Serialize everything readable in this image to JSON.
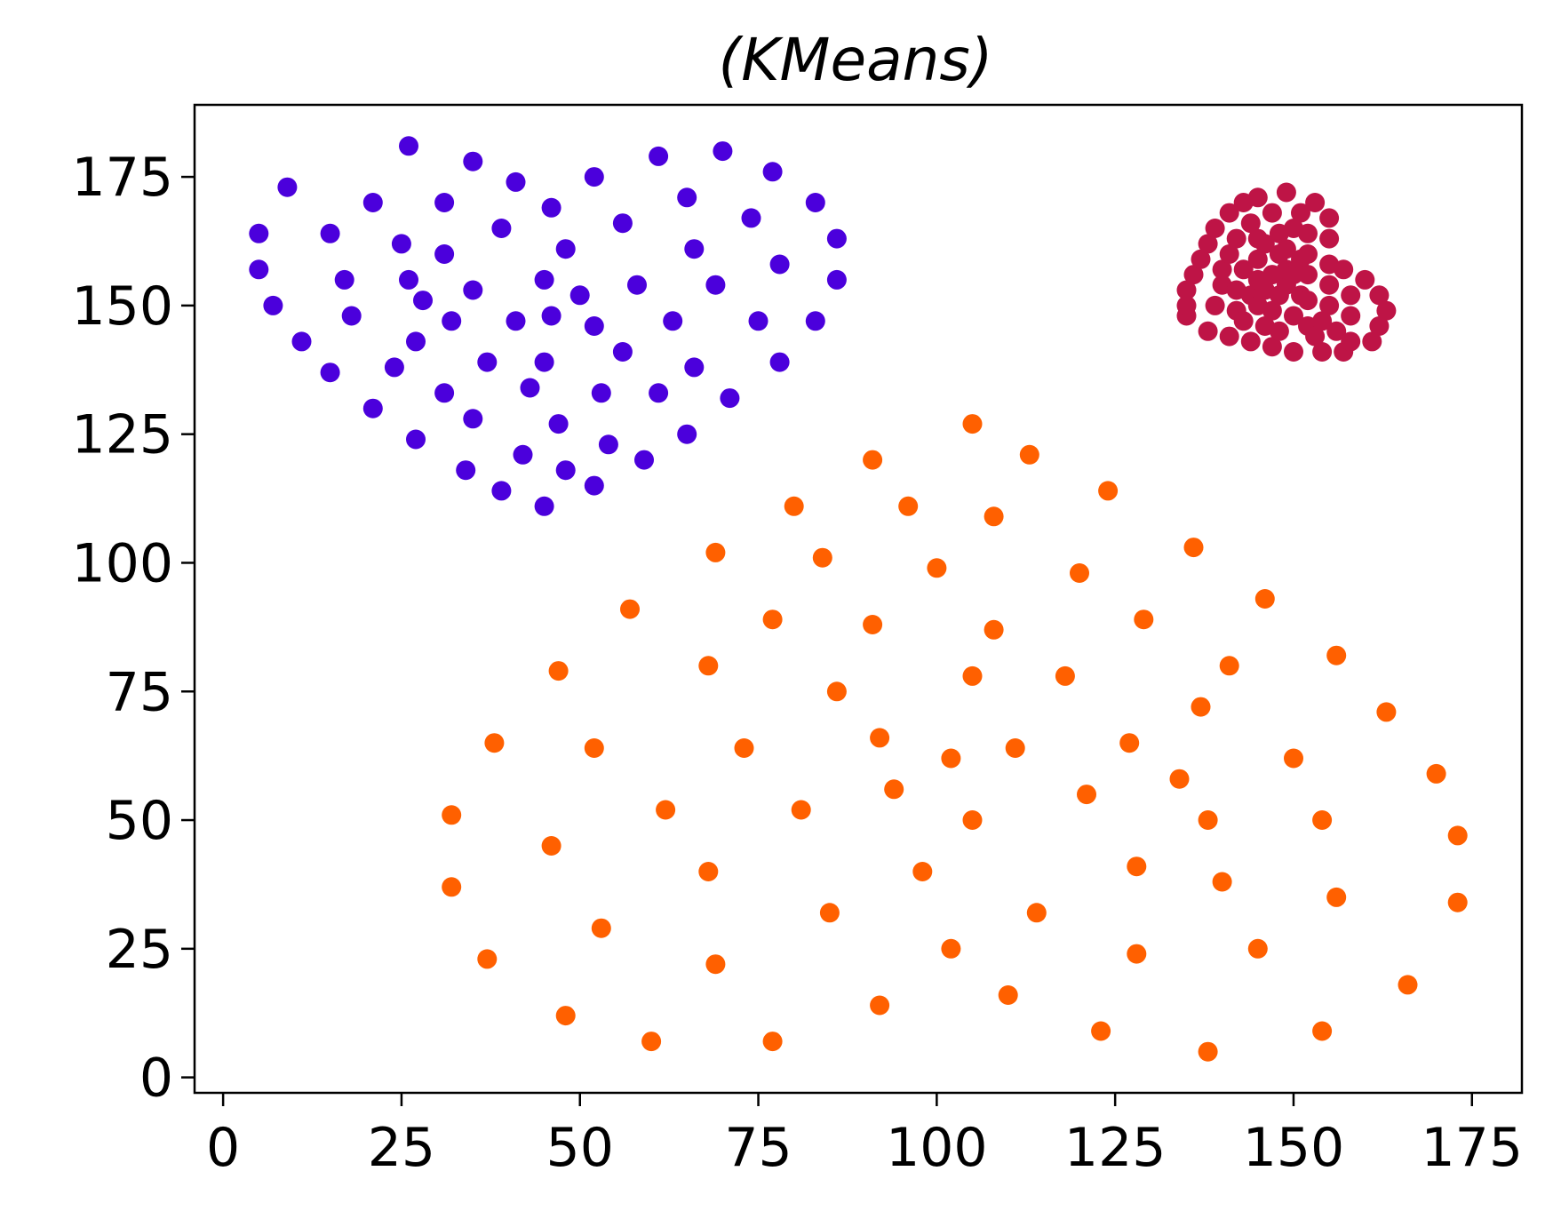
{
  "chart_data": {
    "type": "scatter",
    "title": "(KMeans)",
    "xlabel": "",
    "ylabel": "",
    "xlim": [
      -4,
      182
    ],
    "ylim": [
      -3,
      189
    ],
    "xticks": [
      0,
      25,
      50,
      75,
      100,
      125,
      150,
      175
    ],
    "yticks": [
      0,
      25,
      50,
      75,
      100,
      125,
      150,
      175
    ],
    "grid": false,
    "legend": "none",
    "series": [
      {
        "color": "#4b00dc",
        "points": [
          [
            5,
            164
          ],
          [
            5,
            157
          ],
          [
            7,
            150
          ],
          [
            9,
            173
          ],
          [
            11,
            143
          ],
          [
            15,
            164
          ],
          [
            15,
            137
          ],
          [
            17,
            155
          ],
          [
            18,
            148
          ],
          [
            21,
            170
          ],
          [
            21,
            130
          ],
          [
            24,
            138
          ],
          [
            25,
            162
          ],
          [
            26,
            181
          ],
          [
            26,
            155
          ],
          [
            27,
            143
          ],
          [
            27,
            124
          ],
          [
            28,
            151
          ],
          [
            31,
            133
          ],
          [
            31,
            170
          ],
          [
            31,
            160
          ],
          [
            32,
            147
          ],
          [
            34,
            118
          ],
          [
            35,
            178
          ],
          [
            35,
            153
          ],
          [
            35,
            128
          ],
          [
            37,
            139
          ],
          [
            39,
            165
          ],
          [
            39,
            114
          ],
          [
            41,
            147
          ],
          [
            41,
            174
          ],
          [
            42,
            121
          ],
          [
            43,
            134
          ],
          [
            45,
            155
          ],
          [
            45,
            139
          ],
          [
            45,
            111
          ],
          [
            46,
            169
          ],
          [
            46,
            148
          ],
          [
            47,
            127
          ],
          [
            48,
            161
          ],
          [
            48,
            118
          ],
          [
            50,
            152
          ],
          [
            52,
            175
          ],
          [
            52,
            146
          ],
          [
            52,
            115
          ],
          [
            53,
            133
          ],
          [
            54,
            123
          ],
          [
            56,
            166
          ],
          [
            56,
            141
          ],
          [
            58,
            154
          ],
          [
            59,
            120
          ],
          [
            61,
            179
          ],
          [
            61,
            133
          ],
          [
            63,
            147
          ],
          [
            65,
            125
          ],
          [
            65,
            171
          ],
          [
            66,
            161
          ],
          [
            66,
            138
          ],
          [
            69,
            154
          ],
          [
            70,
            180
          ],
          [
            71,
            132
          ],
          [
            74,
            167
          ],
          [
            75,
            147
          ],
          [
            77,
            176
          ],
          [
            78,
            158
          ],
          [
            78,
            139
          ],
          [
            83,
            170
          ],
          [
            83,
            147
          ],
          [
            86,
            163
          ],
          [
            86,
            155
          ]
        ]
      },
      {
        "color": "#ff6000",
        "points": [
          [
            32,
            51
          ],
          [
            32,
            37
          ],
          [
            37,
            23
          ],
          [
            38,
            65
          ],
          [
            46,
            45
          ],
          [
            47,
            79
          ],
          [
            48,
            12
          ],
          [
            52,
            64
          ],
          [
            53,
            29
          ],
          [
            57,
            91
          ],
          [
            60,
            7
          ],
          [
            62,
            52
          ],
          [
            68,
            80
          ],
          [
            68,
            40
          ],
          [
            69,
            22
          ],
          [
            69,
            102
          ],
          [
            73,
            64
          ],
          [
            77,
            89
          ],
          [
            77,
            7
          ],
          [
            80,
            111
          ],
          [
            81,
            52
          ],
          [
            84,
            101
          ],
          [
            85,
            32
          ],
          [
            86,
            75
          ],
          [
            91,
            88
          ],
          [
            91,
            120
          ],
          [
            92,
            66
          ],
          [
            92,
            14
          ],
          [
            94,
            56
          ],
          [
            96,
            111
          ],
          [
            98,
            40
          ],
          [
            100,
            99
          ],
          [
            102,
            62
          ],
          [
            102,
            25
          ],
          [
            105,
            127
          ],
          [
            105,
            78
          ],
          [
            105,
            50
          ],
          [
            108,
            87
          ],
          [
            108,
            109
          ],
          [
            110,
            16
          ],
          [
            111,
            64
          ],
          [
            113,
            121
          ],
          [
            114,
            32
          ],
          [
            118,
            78
          ],
          [
            120,
            98
          ],
          [
            121,
            55
          ],
          [
            123,
            9
          ],
          [
            124,
            114
          ],
          [
            127,
            65
          ],
          [
            128,
            41
          ],
          [
            128,
            24
          ],
          [
            129,
            89
          ],
          [
            134,
            58
          ],
          [
            136,
            103
          ],
          [
            137,
            72
          ],
          [
            138,
            50
          ],
          [
            138,
            5
          ],
          [
            140,
            38
          ],
          [
            141,
            80
          ],
          [
            145,
            25
          ],
          [
            146,
            93
          ],
          [
            150,
            62
          ],
          [
            154,
            50
          ],
          [
            154,
            9
          ],
          [
            156,
            82
          ],
          [
            156,
            35
          ],
          [
            163,
            71
          ],
          [
            166,
            18
          ],
          [
            170,
            59
          ],
          [
            173,
            47
          ],
          [
            173,
            34
          ]
        ]
      },
      {
        "color": "#be1446",
        "points": [
          [
            135,
            148
          ],
          [
            135,
            150
          ],
          [
            135,
            153
          ],
          [
            136,
            156
          ],
          [
            137,
            159
          ],
          [
            138,
            162
          ],
          [
            138,
            145
          ],
          [
            139,
            165
          ],
          [
            139,
            150
          ],
          [
            140,
            154
          ],
          [
            140,
            157
          ],
          [
            141,
            160
          ],
          [
            141,
            168
          ],
          [
            141,
            144
          ],
          [
            142,
            163
          ],
          [
            142,
            149
          ],
          [
            142,
            153
          ],
          [
            143,
            170
          ],
          [
            143,
            157
          ],
          [
            143,
            147
          ],
          [
            144,
            166
          ],
          [
            144,
            152
          ],
          [
            144,
            143
          ],
          [
            145,
            171
          ],
          [
            145,
            163
          ],
          [
            145,
            159
          ],
          [
            145,
            155
          ],
          [
            145,
            150
          ],
          [
            146,
            162
          ],
          [
            146,
            146
          ],
          [
            146,
            153
          ],
          [
            147,
            168
          ],
          [
            147,
            156
          ],
          [
            147,
            149
          ],
          [
            147,
            142
          ],
          [
            148,
            164
          ],
          [
            148,
            160
          ],
          [
            148,
            152
          ],
          [
            148,
            145
          ],
          [
            149,
            161
          ],
          [
            149,
            154
          ],
          [
            149,
            157
          ],
          [
            149,
            172
          ],
          [
            150,
            165
          ],
          [
            150,
            156
          ],
          [
            150,
            148
          ],
          [
            150,
            141
          ],
          [
            151,
            168
          ],
          [
            151,
            159
          ],
          [
            151,
            152
          ],
          [
            152,
            164
          ],
          [
            152,
            160
          ],
          [
            152,
            156
          ],
          [
            152,
            151
          ],
          [
            152,
            146
          ],
          [
            153,
            170
          ],
          [
            153,
            144
          ],
          [
            154,
            147
          ],
          [
            154,
            141
          ],
          [
            155,
            167
          ],
          [
            155,
            158
          ],
          [
            155,
            163
          ],
          [
            155,
            150
          ],
          [
            155,
            154
          ],
          [
            156,
            145
          ],
          [
            157,
            157
          ],
          [
            157,
            141
          ],
          [
            158,
            152
          ],
          [
            158,
            148
          ],
          [
            158,
            143
          ],
          [
            160,
            155
          ],
          [
            161,
            143
          ],
          [
            162,
            146
          ],
          [
            162,
            152
          ],
          [
            163,
            149
          ]
        ]
      }
    ]
  }
}
